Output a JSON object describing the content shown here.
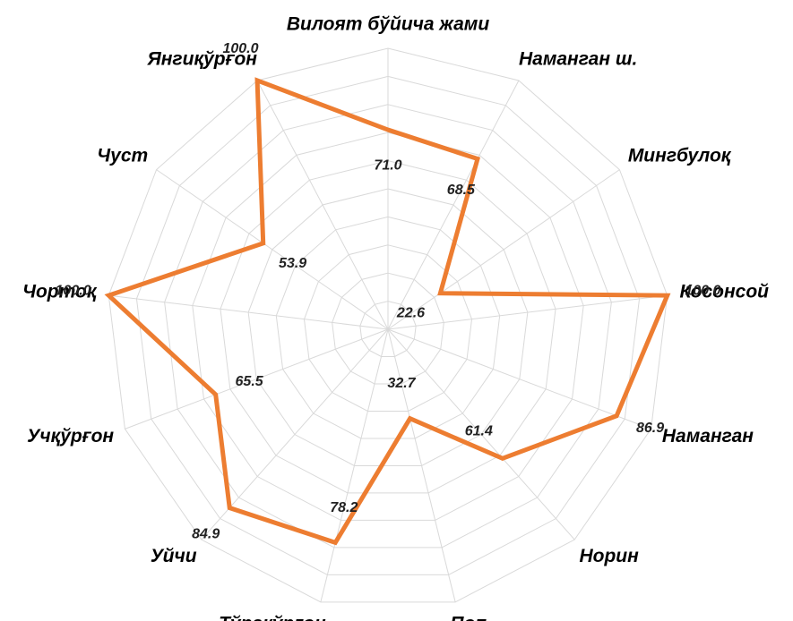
{
  "chart_data": {
    "type": "radar",
    "categories": [
      "Вилоят бўйича жами",
      "Наманган ш.",
      "Мингбулоқ",
      "Косонсой",
      "Наманган",
      "Норин",
      "Поп",
      "Тўрақўрғон",
      "Уйчи",
      "Учқўрғон",
      "Чортоқ",
      "Чуст",
      "Янгиқўрғон"
    ],
    "values": [
      71.0,
      68.5,
      22.6,
      100.0,
      86.9,
      61.4,
      32.7,
      78.2,
      84.9,
      65.5,
      100.0,
      53.9,
      100.0
    ],
    "value_labels": [
      "71.0",
      "68.5",
      "22.6",
      "100.0",
      "86.9",
      "61.4",
      "32.7",
      "78.2",
      "84.9",
      "65.5",
      "100.0",
      "53.9",
      "100.0"
    ],
    "color": "#ed7d31",
    "ylim": [
      0,
      100
    ],
    "yticks": [
      0,
      10,
      20,
      30,
      40,
      50,
      60,
      70,
      80,
      90,
      100
    ],
    "grid": true
  }
}
